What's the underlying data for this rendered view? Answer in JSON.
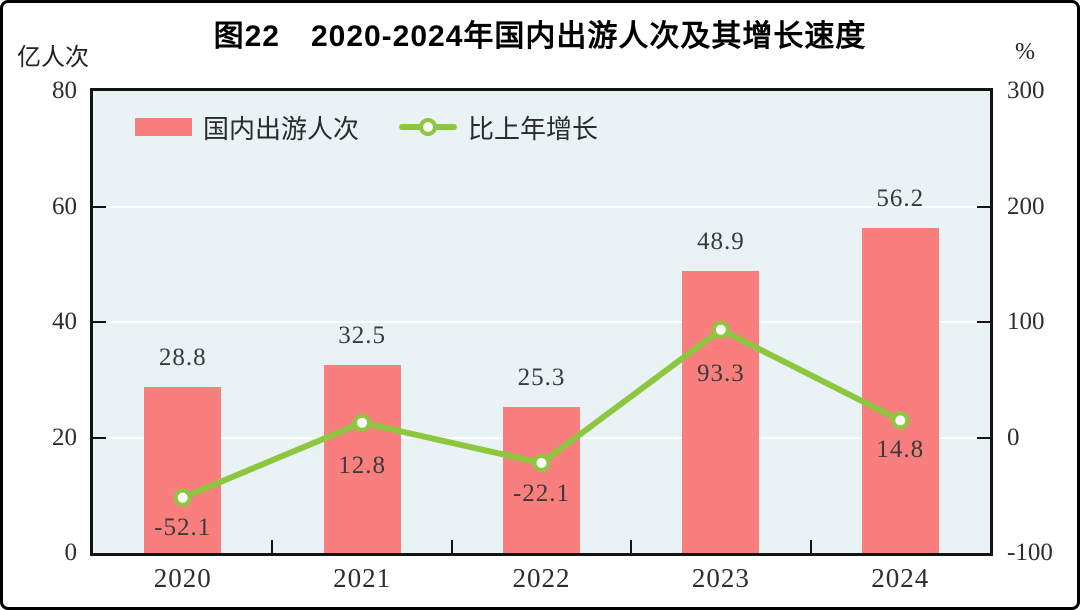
{
  "title": "图22　2020-2024年国内出游人次及其增长速度",
  "colors": {
    "bar": "#f97f7f",
    "line": "#8dc63f",
    "plot_background": "#e9f2f5",
    "gridline": "#ffffff",
    "axis_border": "#141414",
    "text": "#2e2e2e"
  },
  "chart_data": {
    "type": "bar+line",
    "title": "图22　2020-2024年国内出游人次及其增长速度",
    "categories": [
      "2020",
      "2021",
      "2022",
      "2023",
      "2024"
    ],
    "series": [
      {
        "name": "国内出游人次",
        "type": "bar",
        "axis": "left",
        "color": "#f97f7f",
        "values": [
          28.8,
          32.5,
          25.3,
          48.9,
          56.2
        ]
      },
      {
        "name": "比上年增长",
        "type": "line",
        "axis": "right",
        "color": "#8dc63f",
        "marker": "open-circle",
        "values": [
          -52.1,
          12.8,
          -22.1,
          93.3,
          14.8
        ]
      }
    ],
    "left_axis": {
      "label": "亿人次",
      "min": 0,
      "max": 80,
      "ticks": [
        0,
        20,
        40,
        60,
        80
      ]
    },
    "right_axis": {
      "label": "%",
      "min": -100,
      "max": 300,
      "ticks": [
        -100,
        0,
        100,
        200,
        300
      ]
    },
    "grid": true,
    "legend_position": "top-left",
    "data_labels": true
  }
}
